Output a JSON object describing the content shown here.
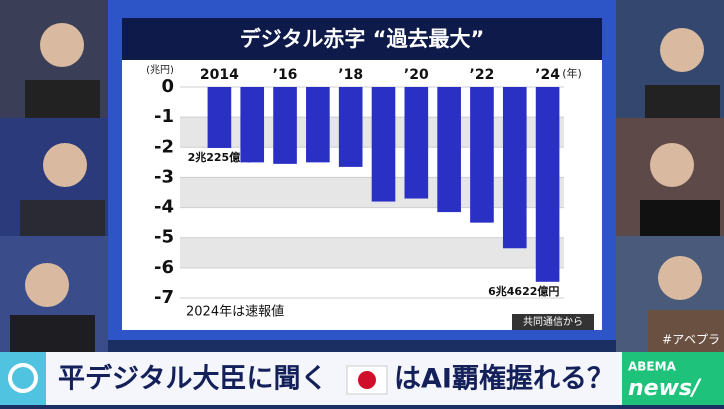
{
  "chart_data": {
    "type": "bar",
    "title": "デジタル赤字 “過去最大”",
    "y_unit": "(兆円)",
    "x_unit": "(年)",
    "categories": [
      "2014",
      null,
      "’16",
      null,
      "’18",
      null,
      "’20",
      null,
      "’22",
      null,
      "’24"
    ],
    "values": [
      -2.0225,
      -2.5,
      -2.55,
      -2.5,
      -2.65,
      -3.8,
      -3.7,
      -4.15,
      -4.5,
      -5.35,
      -6.4622
    ],
    "value_labels": [
      "2兆225億円",
      null,
      null,
      null,
      null,
      null,
      null,
      null,
      null,
      null,
      "6兆4622億円"
    ],
    "color": "#2a30c4",
    "ylim": [
      -7,
      0
    ],
    "yticks": [
      0,
      -1,
      -2,
      -3,
      -4,
      -5,
      -6,
      -7
    ],
    "grid": true,
    "note": "2024年は速報値",
    "source": "共同通信から"
  },
  "banner": {
    "text_left": "平デジタル大臣に聞く",
    "text_right": "はAI覇権握れる？"
  },
  "logo": {
    "line1": "ABEMA",
    "line2": "news/"
  },
  "hashtag": "#アベプラ"
}
